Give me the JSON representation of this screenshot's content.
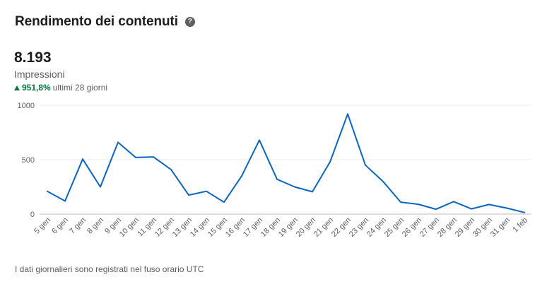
{
  "header": {
    "title": "Rendimento dei contenuti",
    "help_icon": "question-circle-icon"
  },
  "metric": {
    "value": "8.193",
    "label": "Impressioni",
    "delta_value": "951,8%",
    "delta_period": "ultimi 28 giorni",
    "delta_color": "#057642"
  },
  "footnote": "I dati giornalieri sono registrati nel fuso orario UTC",
  "chart_data": {
    "type": "line",
    "categories": [
      "5 gen",
      "6 gen",
      "7 gen",
      "8 gen",
      "9 gen",
      "10 gen",
      "11 gen",
      "12 gen",
      "13 gen",
      "14 gen",
      "15 gen",
      "16 gen",
      "17 gen",
      "18 gen",
      "19 gen",
      "20 gen",
      "21 gen",
      "22 gen",
      "23 gen",
      "24 gen",
      "25 gen",
      "26 gen",
      "27 gen",
      "28 gen",
      "29 gen",
      "30 gen",
      "31 gen",
      "1 feb"
    ],
    "series": [
      {
        "values": [
          210,
          120,
          505,
          250,
          660,
          520,
          525,
          410,
          175,
          210,
          110,
          350,
          680,
          320,
          250,
          205,
          480,
          920,
          450,
          300,
          110,
          90,
          45,
          115,
          48,
          88,
          55,
          15
        ],
        "color": "#0a66c2"
      }
    ],
    "yticks": [
      "0",
      "500",
      "1000"
    ],
    "ylim": [
      0,
      1000
    ],
    "grid": true
  }
}
